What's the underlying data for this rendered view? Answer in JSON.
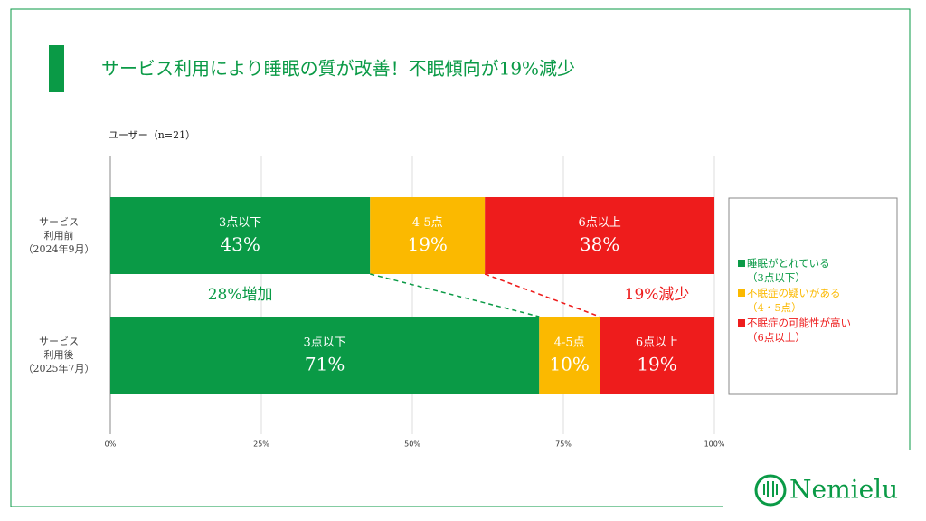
{
  "chart_data": {
    "type": "stacked_barh",
    "title": "サービス利用により睡眠の質が改善！不眠傾向が19%減少",
    "subtitle": "ユーザー（n=21）",
    "categories": [
      "サービス\n利用前\n（2024年9月）",
      "サービス\n利用後\n（2025年7月）"
    ],
    "series": [
      {
        "name": "3点以下",
        "legend": "睡眠がとれている\n（3点以下）",
        "color": "#0a9a46",
        "values": [
          43,
          71
        ],
        "value_labels": [
          "43%",
          "71%"
        ]
      },
      {
        "name": "4-5点",
        "legend": "不眠症の疑いがある\n（4・5点）",
        "color": "#fbb900",
        "values": [
          19,
          10
        ],
        "value_labels": [
          "19%",
          "10%"
        ]
      },
      {
        "name": "6点以上",
        "legend": "不眠症の可能性が高い\n（6点以上）",
        "color": "#ee1c1c",
        "values": [
          38,
          19
        ],
        "value_labels": [
          "38%",
          "19%"
        ]
      }
    ],
    "annotations": [
      {
        "text": "28%増加",
        "color": "#0a9a46"
      },
      {
        "text": "19%減少",
        "color": "#ee1c1c"
      }
    ],
    "xlim": [
      0,
      100
    ],
    "xticks": [
      {
        "value": 0,
        "label": "0%"
      },
      {
        "value": 25,
        "label": "25%"
      },
      {
        "value": 50,
        "label": "50%"
      },
      {
        "value": 75,
        "label": "75%"
      },
      {
        "value": 100,
        "label": "100%"
      }
    ],
    "grid": true,
    "logo": "Nemielu"
  }
}
